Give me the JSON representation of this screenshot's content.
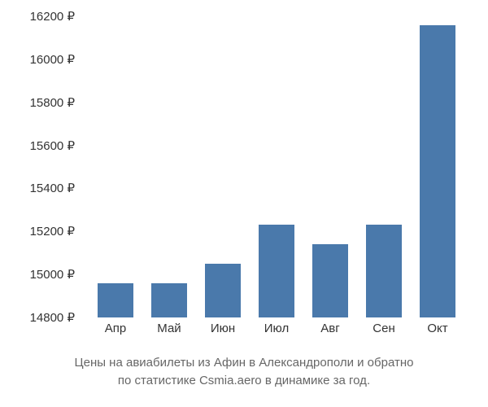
{
  "chart": {
    "type": "bar",
    "categories": [
      "Апр",
      "Май",
      "Июн",
      "Июл",
      "Авг",
      "Сен",
      "Окт"
    ],
    "values": [
      14960,
      14960,
      15050,
      15230,
      15140,
      15230,
      16160
    ],
    "bar_color": "#4a79ab",
    "background_color": "#ffffff",
    "y_axis": {
      "min": 14800,
      "max": 16200,
      "step": 200,
      "ticks": [
        14800,
        15000,
        15200,
        15400,
        15600,
        15800,
        16000,
        16200
      ],
      "tick_labels": [
        "14800 ₽",
        "15000 ₽",
        "15200 ₽",
        "15400 ₽",
        "15600 ₽",
        "15800 ₽",
        "16000 ₽",
        "16200 ₽"
      ]
    },
    "label_fontsize": 15,
    "label_color": "#333333",
    "caption_color": "#666666",
    "caption_fontsize": 15,
    "bar_width_ratio": 0.68,
    "caption_line1": "Цены на авиабилеты из Афин в Александрополи и обратно",
    "caption_line2": "по статистике Csmia.aero в динамике за год."
  }
}
